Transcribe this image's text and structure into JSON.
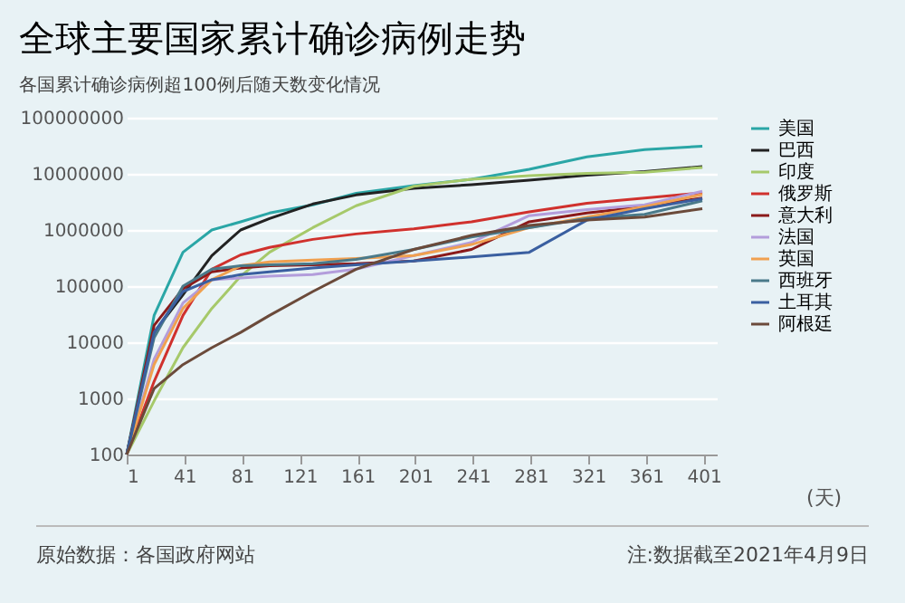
{
  "chart_data": {
    "type": "line",
    "title": "全球主要国家累计确诊病例走势",
    "subtitle": "各国累计确诊病例超100例后随天数变化情况",
    "xlabel": "(天)",
    "annotations": [
      "原始数据：各国政府网站",
      "注:数据截至2021年4月9日"
    ],
    "x": [
      1,
      20,
      40,
      60,
      80,
      100,
      130,
      160,
      200,
      240,
      280,
      320,
      360,
      400
    ],
    "log": "y",
    "xlim": [
      1,
      410
    ],
    "xticks": [
      1,
      41,
      81,
      121,
      161,
      201,
      241,
      281,
      321,
      361,
      401
    ],
    "ylim": [
      100,
      100000000
    ],
    "yticks": [
      100,
      1000,
      10000,
      100000,
      1000000,
      10000000,
      100000000
    ],
    "grid": "y",
    "legend": "right",
    "marker": "none",
    "line_style": "solid",
    "series": [
      {
        "name": "美国",
        "color": "#2aa6a6",
        "values": [
          100,
          30000,
          400000,
          1000000,
          1400000,
          2000000,
          2800000,
          4500000,
          6200000,
          8000000,
          12000000,
          20000000,
          27000000,
          31000000
        ]
      },
      {
        "name": "巴西",
        "color": "#222222",
        "values": [
          100,
          15000,
          70000,
          350000,
          1000000,
          1600000,
          2900000,
          4200000,
          5500000,
          6400000,
          7700000,
          9500000,
          11000000,
          13500000
        ]
      },
      {
        "name": "印度",
        "color": "#a6c96a",
        "values": [
          100,
          900,
          8000,
          40000,
          150000,
          400000,
          1100000,
          2700000,
          6000000,
          8000000,
          9300000,
          10200000,
          10700000,
          13000000
        ]
      },
      {
        "name": "俄罗斯",
        "color": "#d0312d",
        "values": [
          100,
          2000,
          30000,
          200000,
          360000,
          490000,
          680000,
          850000,
          1050000,
          1400000,
          2100000,
          3000000,
          3700000,
          4600000
        ]
      },
      {
        "name": "意大利",
        "color": "#8b1a1a",
        "values": [
          100,
          20000,
          90000,
          180000,
          210000,
          230000,
          240000,
          250000,
          280000,
          450000,
          1400000,
          2000000,
          2600000,
          3700000
        ]
      },
      {
        "name": "法国",
        "color": "#b39ddb",
        "values": [
          100,
          5000,
          50000,
          130000,
          140000,
          150000,
          160000,
          200000,
          350000,
          600000,
          1800000,
          2300000,
          2800000,
          4900000
        ]
      },
      {
        "name": "英国",
        "color": "#f0a050",
        "values": [
          100,
          4000,
          40000,
          130000,
          230000,
          270000,
          290000,
          310000,
          350000,
          550000,
          1100000,
          1700000,
          2600000,
          4300000
        ]
      },
      {
        "name": "西班牙",
        "color": "#4a7a8a",
        "values": [
          100,
          12000,
          100000,
          200000,
          230000,
          240000,
          250000,
          300000,
          450000,
          750000,
          1100000,
          1600000,
          1900000,
          3300000
        ]
      },
      {
        "name": "土耳其",
        "color": "#3a5fa0",
        "values": [
          100,
          15000,
          80000,
          130000,
          160000,
          180000,
          210000,
          240000,
          280000,
          330000,
          400000,
          1500000,
          2400000,
          3600000
        ]
      },
      {
        "name": "阿根廷",
        "color": "#6b4a3a",
        "values": [
          100,
          1500,
          4000,
          8000,
          15000,
          30000,
          80000,
          200000,
          450000,
          800000,
          1200000,
          1500000,
          1700000,
          2400000
        ]
      }
    ]
  }
}
